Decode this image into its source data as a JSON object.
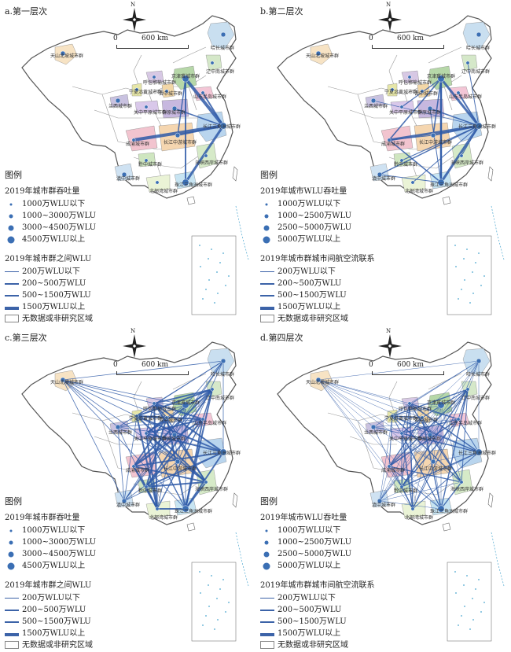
{
  "panels": [
    {
      "title": "a.第一层次",
      "node_legend_title": "2019年城市群吞吐量",
      "node_items": [
        "1000万WLU以下",
        "1000~3000万WLU",
        "3000~4500万WLU",
        "4500万WLU以上"
      ],
      "line_legend_title": "2019年城市群之间WLU",
      "line_items": [
        "200万WLU以下",
        "200~500万WLU",
        "500~1500万WLU",
        "1500万WLU以上"
      ],
      "density": 1
    },
    {
      "title": "b.第二层次",
      "node_legend_title": "2019年城市WLU吞吐量",
      "node_items": [
        "1000万WLU以下",
        "1000~2500万WLU",
        "2500~5000万WLU",
        "5000万WLU以上"
      ],
      "line_legend_title": "2019年城市群城市间航空流联系",
      "line_items": [
        "200万WLU以下",
        "200~500万WLU",
        "500~1500万WLU",
        "1500万WLU以上"
      ],
      "density": 2
    },
    {
      "title": "c.第三层次",
      "node_legend_title": "2019年城市群吞吐量",
      "node_items": [
        "1000万WLU以下",
        "1000~3000万WLU",
        "3000~4500万WLU",
        "4500万WLU以上"
      ],
      "line_legend_title": "2019年城市群之间WLU",
      "line_items": [
        "200万WLU以下",
        "200~500万WLU",
        "500~1500万WLU",
        "1500万WLU以上"
      ],
      "density": 3
    },
    {
      "title": "d.第四层次",
      "node_legend_title": "2019年城市WLU吞吐量",
      "node_items": [
        "1000万WLU以下",
        "1000~2500万WLU",
        "2500~5000万WLU",
        "5000万WLU以上"
      ],
      "line_legend_title": "2019年城市群城市间航空流联系",
      "line_items": [
        "200万WLU以下",
        "200~500万WLU",
        "500~1500万WLU",
        "1500万WLU以上"
      ],
      "density": 4
    }
  ],
  "legend_heading": "图例",
  "no_data_label": "无数据或非研究区域",
  "north_label": "N",
  "scale": {
    "zero": "0",
    "distance": "600 km"
  },
  "region_labels": {
    "tianshan": "天山北坡城市群",
    "harbin": "哈长城市群",
    "central_south_liaoning": "辽中南城市群",
    "hubao": "呼包鄂榆城市群",
    "jingjinji": "京津冀城市群",
    "shandong": "山东半岛城市群",
    "ningxia": "宁夏沿黄城市群",
    "lanxi": "兰西城市群",
    "jinzhong": "晋中城市群",
    "guanzhong": "关中平原城市群",
    "zhongyuan": "中原城市群",
    "yangtze": "长江三角洲城市群",
    "chengyu": "成渝城市群",
    "middle": "长江中游城市群",
    "westcoast": "海峡西岸城市群",
    "qianzhong": "黔中城市群",
    "dianzhong": "滇中城市群",
    "beibu": "北部湾城市群",
    "prd": "珠江三角洲城市群"
  }
}
